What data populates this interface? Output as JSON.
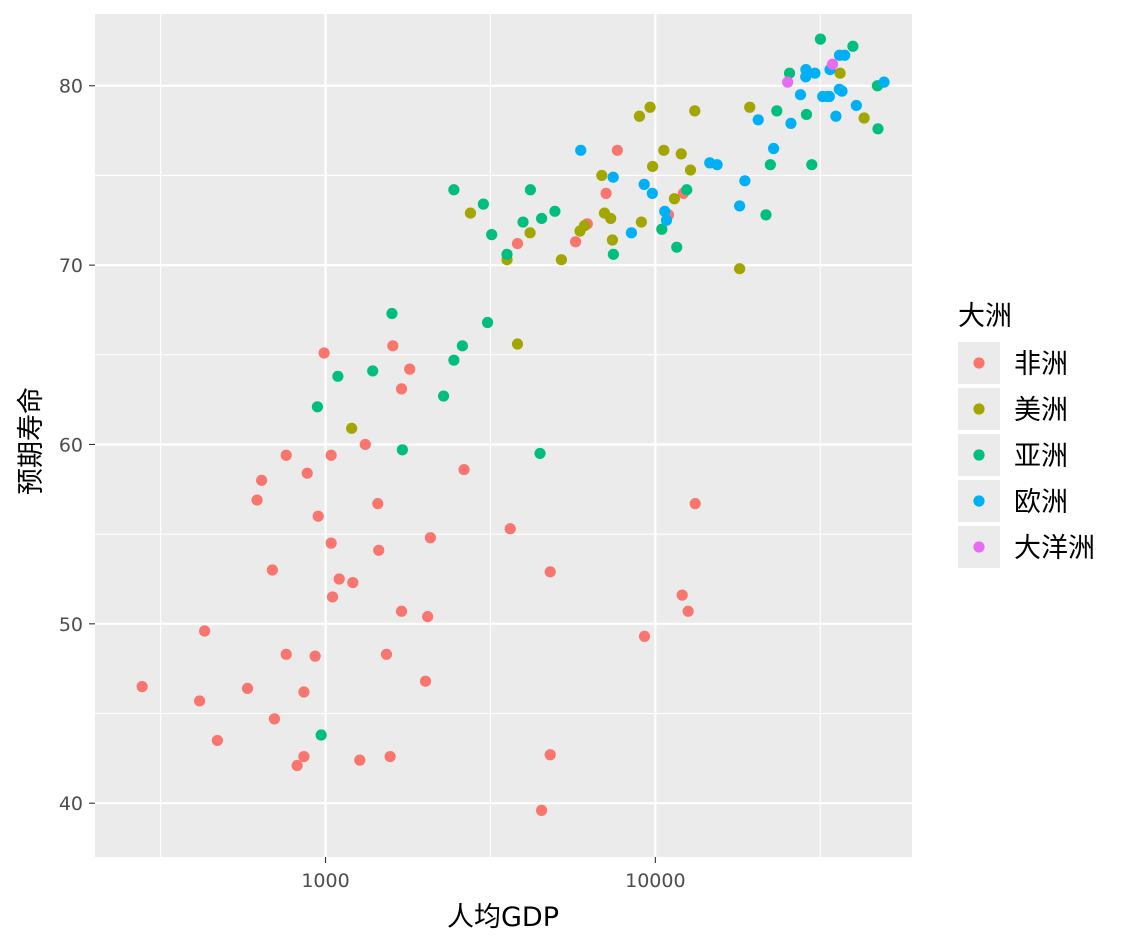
{
  "chart_data": {
    "type": "scatter",
    "xlabel": "人均GDP",
    "ylabel": "预期寿命",
    "x_scale": "log10",
    "xlim": [
      200,
      60000
    ],
    "ylim": [
      37,
      84
    ],
    "x_ticks": [
      1000,
      10000
    ],
    "x_tick_labels": [
      "1000",
      "10000"
    ],
    "y_ticks": [
      40,
      50,
      60,
      70,
      80
    ],
    "y_tick_labels": [
      "40",
      "50",
      "60",
      "70",
      "80"
    ],
    "grid": true,
    "legend": {
      "title": "大洲",
      "position": "right"
    },
    "series": [
      {
        "name": "非洲",
        "color": "#F8766D",
        "points": [
          [
            278,
            46.5
          ],
          [
            430,
            49.6
          ],
          [
            415,
            45.7
          ],
          [
            470,
            43.5
          ],
          [
            580,
            46.4
          ],
          [
            620,
            56.9
          ],
          [
            640,
            58.0
          ],
          [
            690,
            53.0
          ],
          [
            700,
            44.7
          ],
          [
            760,
            59.4
          ],
          [
            760,
            48.3
          ],
          [
            820,
            42.1
          ],
          [
            860,
            42.6
          ],
          [
            860,
            46.2
          ],
          [
            880,
            58.4
          ],
          [
            930,
            48.2
          ],
          [
            950,
            56.0
          ],
          [
            990,
            65.1
          ],
          [
            1040,
            59.4
          ],
          [
            1040,
            54.5
          ],
          [
            1050,
            51.5
          ],
          [
            1100,
            52.5
          ],
          [
            1210,
            52.3
          ],
          [
            1270,
            42.4
          ],
          [
            1320,
            60.0
          ],
          [
            1440,
            56.7
          ],
          [
            1450,
            54.1
          ],
          [
            1530,
            48.3
          ],
          [
            1570,
            42.6
          ],
          [
            1600,
            65.5
          ],
          [
            1700,
            63.1
          ],
          [
            1700,
            50.7
          ],
          [
            1800,
            64.2
          ],
          [
            2010,
            46.8
          ],
          [
            2040,
            50.4
          ],
          [
            2080,
            54.8
          ],
          [
            2630,
            58.6
          ],
          [
            3630,
            55.3
          ],
          [
            3820,
            71.2
          ],
          [
            4520,
            39.6
          ],
          [
            4800,
            42.7
          ],
          [
            4800,
            52.9
          ],
          [
            5730,
            71.3
          ],
          [
            6220,
            72.3
          ],
          [
            7090,
            74.0
          ],
          [
            7670,
            76.4
          ],
          [
            9270,
            49.3
          ],
          [
            10960,
            72.8
          ],
          [
            12060,
            51.6
          ],
          [
            12160,
            74.0
          ],
          [
            12570,
            50.7
          ],
          [
            13210,
            56.7
          ]
        ]
      },
      {
        "name": "美洲",
        "color": "#A3A500",
        "points": [
          [
            1200,
            60.9
          ],
          [
            2750,
            72.9
          ],
          [
            3550,
            70.3
          ],
          [
            3820,
            65.6
          ],
          [
            4170,
            71.8
          ],
          [
            5190,
            70.3
          ],
          [
            5910,
            71.9
          ],
          [
            6100,
            72.2
          ],
          [
            6880,
            75.0
          ],
          [
            7010,
            72.9
          ],
          [
            7320,
            72.6
          ],
          [
            7410,
            71.4
          ],
          [
            8950,
            78.3
          ],
          [
            9070,
            72.4
          ],
          [
            9640,
            78.8
          ],
          [
            9810,
            75.5
          ],
          [
            10610,
            76.4
          ],
          [
            11420,
            73.7
          ],
          [
            11980,
            76.2
          ],
          [
            12780,
            75.3
          ],
          [
            13170,
            78.6
          ],
          [
            18010,
            69.8
          ],
          [
            19330,
            78.8
          ],
          [
            36320,
            80.7
          ],
          [
            42950,
            78.2
          ]
        ]
      },
      {
        "name": "亚洲",
        "color": "#00BF7D",
        "points": [
          [
            970,
            43.8
          ],
          [
            945,
            62.1
          ],
          [
            1090,
            63.8
          ],
          [
            1390,
            64.1
          ],
          [
            1590,
            67.3
          ],
          [
            1710,
            59.7
          ],
          [
            2280,
            62.7
          ],
          [
            2450,
            74.2
          ],
          [
            2450,
            64.7
          ],
          [
            2600,
            65.5
          ],
          [
            3010,
            73.4
          ],
          [
            3100,
            66.8
          ],
          [
            3190,
            71.7
          ],
          [
            3550,
            70.6
          ],
          [
            3970,
            72.4
          ],
          [
            4180,
            74.2
          ],
          [
            4470,
            59.5
          ],
          [
            4520,
            72.6
          ],
          [
            4960,
            73.0
          ],
          [
            7460,
            70.6
          ],
          [
            10460,
            72.0
          ],
          [
            11610,
            71.0
          ],
          [
            12450,
            74.2
          ],
          [
            21650,
            72.8
          ],
          [
            22320,
            75.6
          ],
          [
            23350,
            78.6
          ],
          [
            25520,
            80.7
          ],
          [
            28720,
            78.4
          ],
          [
            31660,
            82.6
          ],
          [
            47140,
            80.0
          ],
          [
            47310,
            77.6
          ],
          [
            39720,
            82.2
          ],
          [
            29800,
            75.6
          ]
        ]
      },
      {
        "name": "欧洲",
        "color": "#00B0F6",
        "points": [
          [
            5940,
            76.4
          ],
          [
            7450,
            74.9
          ],
          [
            8460,
            71.8
          ],
          [
            9250,
            74.5
          ],
          [
            9790,
            74.0
          ],
          [
            10680,
            73.0
          ],
          [
            10810,
            72.5
          ],
          [
            14620,
            75.7
          ],
          [
            15390,
            75.6
          ],
          [
            18010,
            73.3
          ],
          [
            18680,
            74.7
          ],
          [
            20510,
            78.1
          ],
          [
            22830,
            76.5
          ],
          [
            25770,
            77.9
          ],
          [
            27540,
            79.5
          ],
          [
            28570,
            80.5
          ],
          [
            28610,
            80.9
          ],
          [
            30470,
            80.7
          ],
          [
            32170,
            79.4
          ],
          [
            33200,
            79.4
          ],
          [
            33690,
            79.4
          ],
          [
            33860,
            80.9
          ],
          [
            35280,
            78.3
          ],
          [
            36130,
            79.8
          ],
          [
            36180,
            81.7
          ],
          [
            36800,
            79.7
          ],
          [
            37510,
            81.7
          ],
          [
            40680,
            78.9
          ],
          [
            49360,
            80.2
          ]
        ]
      },
      {
        "name": "大洋洲",
        "color": "#E76BF3",
        "points": [
          [
            25190,
            80.2
          ],
          [
            34440,
            81.2
          ]
        ]
      }
    ]
  }
}
